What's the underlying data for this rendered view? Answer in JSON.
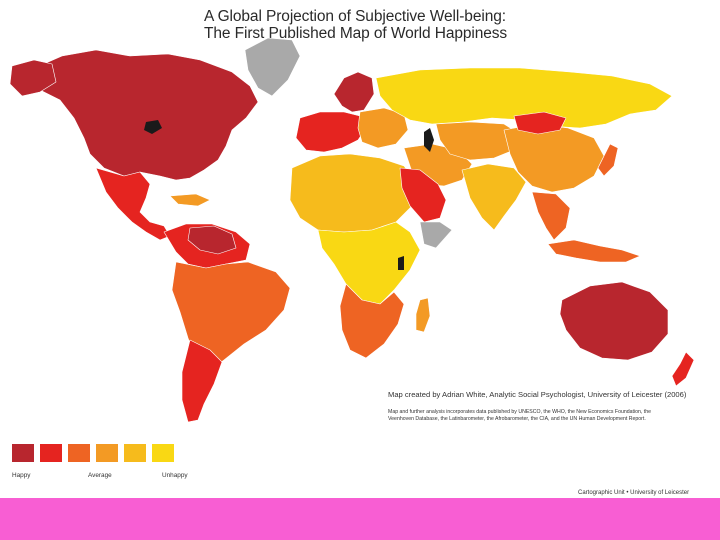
{
  "title": {
    "line1": "A Global Projection of Subjective Well-being:",
    "line2": "The First Published Map of World Happiness"
  },
  "credit": {
    "main": "Map created by Adrian White, Analytic Social Psychologist, University of Leicester (2006)",
    "note": "Map and further analysis incorporates data published by UNESCO, the WHO, the New Economics Foundation, the Veenhoven Database, the Latinbarometer, the Afrobarometer, the CIA, and the UN Human Development Report."
  },
  "legend": {
    "colors": [
      "#b8262e",
      "#e52420",
      "#ee6423",
      "#f39a24",
      "#f6bb1c",
      "#f9d814"
    ],
    "labels": {
      "happy": "Happy",
      "average": "Average",
      "unhappy": "Unhappy"
    }
  },
  "cartographic": "Cartographic Unit • University of Leicester",
  "colors": {
    "no_data": "#a9a9a9",
    "footer_bar": "#f85ed3"
  }
}
